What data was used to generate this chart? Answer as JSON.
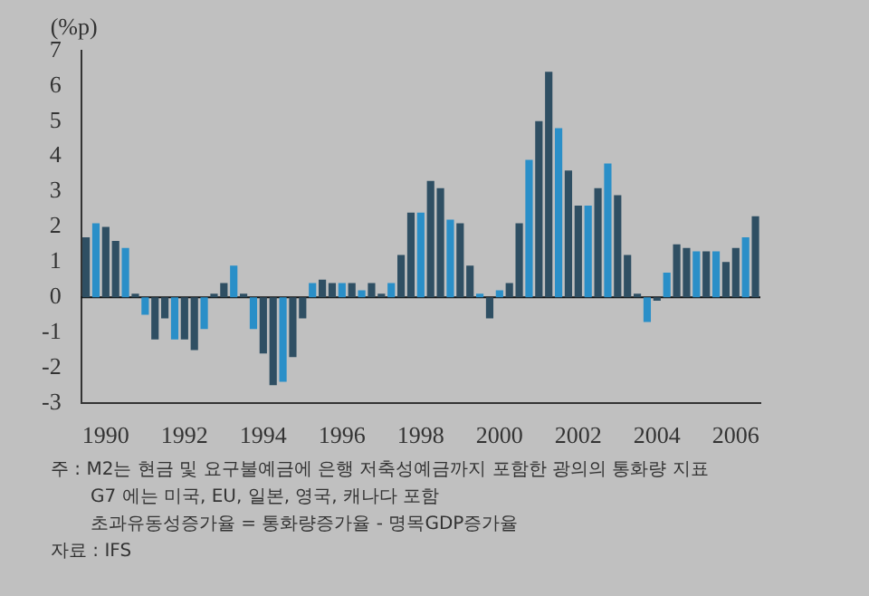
{
  "chart_data": {
    "type": "bar",
    "ylabel": "(%p)",
    "categories": [
      null,
      null,
      "1990",
      null,
      null,
      null,
      null,
      null,
      null,
      null,
      "1992",
      null,
      null,
      null,
      null,
      null,
      null,
      null,
      "1994",
      null,
      null,
      null,
      null,
      null,
      null,
      null,
      "1996",
      null,
      null,
      null,
      null,
      null,
      null,
      null,
      "1998",
      null,
      null,
      null,
      null,
      null,
      null,
      null,
      "2000",
      null,
      null,
      null,
      null,
      null,
      null,
      null,
      "2002",
      null,
      null,
      null,
      null,
      null,
      null,
      null,
      "2004",
      null,
      null,
      null,
      null,
      null,
      null,
      null,
      "2006",
      null,
      null
    ],
    "values": [
      1.7,
      2.1,
      2.0,
      1.6,
      1.4,
      0.1,
      -0.5,
      -1.2,
      -0.6,
      -1.2,
      -1.2,
      -1.5,
      -0.9,
      0.1,
      0.4,
      0.9,
      0.1,
      -0.9,
      -1.6,
      -2.5,
      -2.4,
      -1.7,
      -0.6,
      0.4,
      0.5,
      0.4,
      0.4,
      0.4,
      0.2,
      0.4,
      0.1,
      0.4,
      1.2,
      2.4,
      2.4,
      3.3,
      3.1,
      2.2,
      2.1,
      0.9,
      0.1,
      -0.6,
      0.2,
      0.4,
      2.1,
      3.9,
      5.0,
      6.4,
      4.8,
      3.6,
      2.6,
      2.6,
      3.1,
      3.8,
      2.9,
      1.2,
      0.1,
      -0.7,
      -0.1,
      0.7,
      1.5,
      1.4,
      1.3,
      1.3,
      1.3,
      1.0,
      1.4,
      1.7,
      2.3
    ],
    "colors": [
      "#2f4f63",
      "#2a8fc8",
      "#2f4f63",
      "#2f4f63",
      "#2a8fc8",
      "#2f4f63",
      "#2a8fc8",
      "#2f4f63",
      "#2f4f63",
      "#2a8fc8",
      "#2f4f63",
      "#2f4f63",
      "#2a8fc8",
      "#2f4f63",
      "#2f4f63",
      "#2a8fc8",
      "#2f4f63",
      "#2a8fc8",
      "#2f4f63",
      "#2f4f63",
      "#2a8fc8",
      "#2f4f63",
      "#2f4f63",
      "#2a8fc8",
      "#2f4f63",
      "#2f4f63",
      "#2a8fc8",
      "#2f4f63",
      "#2a8fc8",
      "#2f4f63",
      "#2f4f63",
      "#2a8fc8",
      "#2f4f63",
      "#2f4f63",
      "#2a8fc8",
      "#2f4f63",
      "#2f4f63",
      "#2a8fc8",
      "#2f4f63",
      "#2f4f63",
      "#2a8fc8",
      "#2f4f63",
      "#2a8fc8",
      "#2f4f63",
      "#2f4f63",
      "#2a8fc8",
      "#2f4f63",
      "#2f4f63",
      "#2a8fc8",
      "#2f4f63",
      "#2f4f63",
      "#2a8fc8",
      "#2f4f63",
      "#2a8fc8",
      "#2f4f63",
      "#2f4f63",
      "#2f4f63",
      "#2a8fc8",
      "#2f4f63",
      "#2a8fc8",
      "#2f4f63",
      "#2f4f63",
      "#2a8fc8",
      "#2f4f63",
      "#2a8fc8",
      "#2f4f63",
      "#2f4f63",
      "#2a8fc8",
      "#2f4f63"
    ],
    "ylim": [
      -3,
      7
    ],
    "yticks": [
      -3,
      -2,
      -1,
      0,
      1,
      2,
      3,
      4,
      5,
      6,
      7
    ],
    "grid": false,
    "legend": false,
    "ref_lines": [
      {
        "axis": "y",
        "value": 0,
        "color": "#111111"
      }
    ],
    "annotations": [
      "주 : M2는 현금 및 요구불예금에 은행 저축성예금까지 포함한 광의의 통화량 지표",
      "G7 에는 미국, EU, 일본, 영국, 캐나다 포함",
      "초과유동성증가율 = 통화량증가율 - 명목GDP증가율",
      "자료 : IFS"
    ]
  }
}
